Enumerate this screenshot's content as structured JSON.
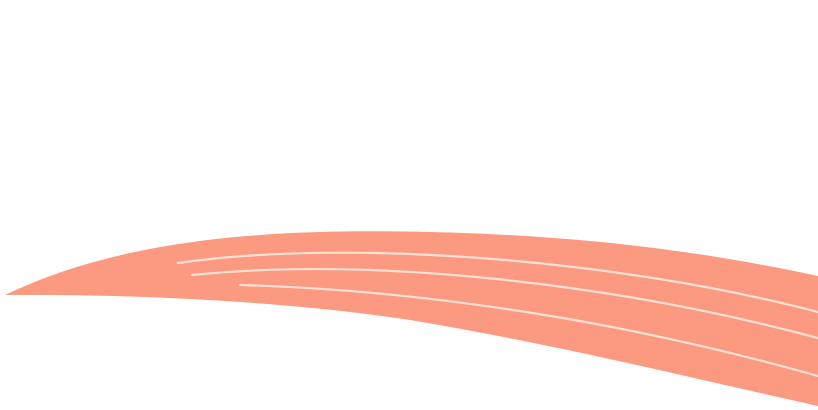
{
  "colors": {
    "background": "#ffffff",
    "swoosh_fill": "#fb9a80",
    "swoosh_stripe": "#fde0d4"
  },
  "graphic": {
    "name": "salmon-swoosh",
    "stripe_count": 3
  }
}
